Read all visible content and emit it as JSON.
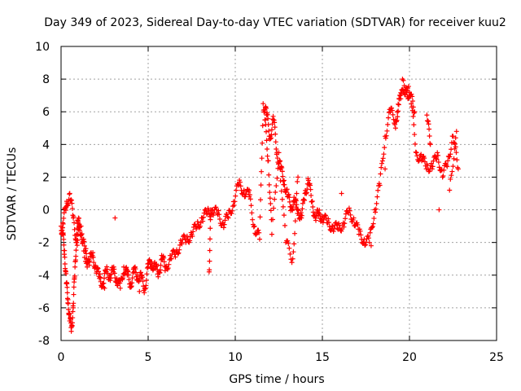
{
  "chart_data": {
    "type": "scatter",
    "title": "Day 349 of 2023, Sidereal Day-to-day VTEC variation (SDTVAR) for receiver kuu2",
    "xlabel": "GPS time / hours",
    "ylabel": "SDTVAR / TECUs",
    "xlim": [
      0,
      25
    ],
    "ylim": [
      -8,
      10
    ],
    "xticks": [
      "0",
      "5",
      "10",
      "15",
      "20",
      "25"
    ],
    "yticks": [
      "-8",
      "-6",
      "-4",
      "-2",
      "0",
      "2",
      "4",
      "6",
      "8",
      "10"
    ],
    "grid": true,
    "marker": "+",
    "color": "#ff0000",
    "series": [
      {
        "name": "kuu2",
        "x": [
          0.0,
          0.1,
          0.2,
          0.3,
          0.4,
          0.5,
          0.6,
          0.7,
          0.8,
          0.9,
          1.0,
          1.2,
          1.4,
          1.6,
          1.8,
          2.0,
          2.2,
          2.4,
          2.6,
          2.8,
          3.0,
          3.2,
          3.4,
          3.6,
          3.8,
          4.0,
          4.2,
          4.4,
          4.6,
          4.8,
          5.0,
          5.2,
          5.4,
          5.6,
          5.8,
          6.0,
          6.3,
          6.6,
          6.9,
          7.2,
          7.5,
          7.8,
          8.1,
          8.4,
          8.7,
          9.0,
          9.3,
          9.6,
          9.9,
          10.2,
          10.5,
          10.8,
          11.1,
          11.4,
          11.6,
          11.8,
          12.0,
          12.2,
          12.4,
          12.6,
          12.8,
          13.0,
          13.2,
          13.4,
          13.6,
          13.8,
          14.0,
          14.2,
          14.4,
          14.6,
          14.8,
          15.0,
          15.3,
          15.6,
          15.9,
          16.2,
          16.5,
          16.8,
          17.1,
          17.4,
          17.7,
          18.0,
          18.3,
          18.6,
          18.9,
          19.2,
          19.5,
          19.8,
          20.1,
          20.4,
          20.7,
          21.0,
          21.3,
          21.6,
          21.9,
          22.2,
          22.5,
          22.8,
          0.1,
          0.3,
          0.5,
          0.7,
          0.9,
          1.1,
          1.5,
          2.5,
          3.1,
          4.5,
          8.5,
          8.6,
          10.8,
          11.7,
          11.9,
          12.1,
          12.5,
          12.9,
          13.3,
          13.6,
          16.1,
          17.8,
          18.6,
          19.2,
          19.6,
          20.0,
          20.3,
          21.0,
          21.2,
          21.7,
          22.3,
          22.7
        ],
        "y": [
          -1.0,
          -1.5,
          -2.5,
          -4.5,
          -5.5,
          -6.8,
          -7.2,
          -6.0,
          -3.5,
          -1.5,
          -0.5,
          -1.8,
          -2.5,
          -3.2,
          -2.8,
          -3.5,
          -4.2,
          -4.5,
          -3.8,
          -4.0,
          -3.8,
          -4.2,
          -4.8,
          -3.5,
          -4.0,
          -4.5,
          -3.8,
          -4.0,
          -4.2,
          -4.8,
          -3.5,
          -3.2,
          -3.6,
          -3.8,
          -3.0,
          -3.5,
          -3.0,
          -2.6,
          -2.0,
          -1.8,
          -1.5,
          -1.0,
          -0.5,
          -0.2,
          0.0,
          -0.3,
          -0.8,
          -0.5,
          0.5,
          1.5,
          1.2,
          0.8,
          -1.0,
          -1.8,
          6.5,
          5.8,
          4.5,
          5.5,
          3.5,
          2.5,
          1.8,
          0.8,
          0.2,
          0.5,
          0.0,
          -0.5,
          1.0,
          1.8,
          0.5,
          -0.5,
          -0.2,
          -0.5,
          -0.8,
          -1.0,
          -1.2,
          -0.8,
          -0.2,
          -0.5,
          -1.5,
          -1.8,
          -2.0,
          0.0,
          1.5,
          4.5,
          6.0,
          5.5,
          6.8,
          7.5,
          6.5,
          3.5,
          3.0,
          2.8,
          2.5,
          3.5,
          2.0,
          3.0,
          4.5,
          2.5,
          -0.8,
          0.2,
          1.0,
          -0.5,
          -2.0,
          -1.0,
          -3.5,
          -4.8,
          -0.5,
          -5.0,
          -3.8,
          0.0,
          1.2,
          5.5,
          3.0,
          -1.5,
          3.5,
          -2.0,
          -3.0,
          2.0,
          1.0,
          -2.2,
          2.5,
          5.0,
          8.0,
          7.2,
          6.0,
          5.8,
          4.0,
          0.0,
          1.2,
          4.8
        ]
      }
    ]
  }
}
